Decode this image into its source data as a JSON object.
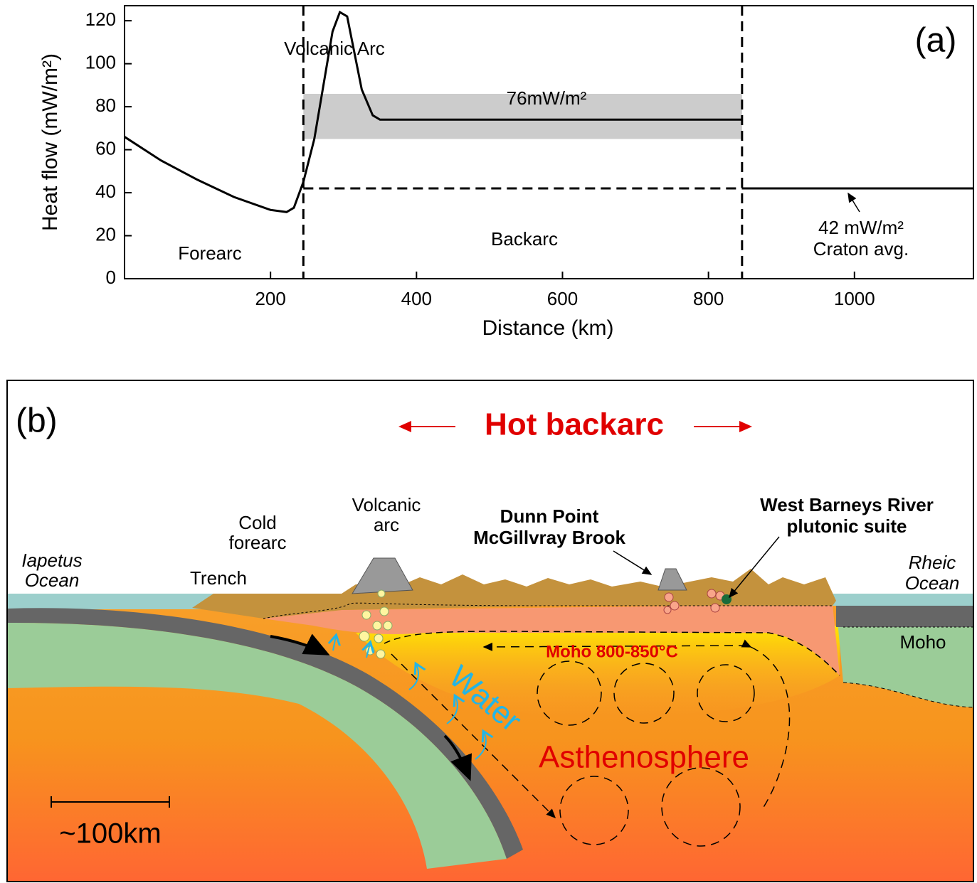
{
  "chart_data": {
    "type": "line",
    "xlabel": "Distance (km)",
    "ylabel": "Heat flow (mW/m²)",
    "xlim": [
      0,
      1163
    ],
    "ylim": [
      0,
      127
    ],
    "xticks": [
      200,
      400,
      600,
      800,
      1000
    ],
    "yticks": [
      0,
      20,
      40,
      60,
      80,
      100,
      120
    ],
    "series": [
      {
        "color": "#000000",
        "dash": false,
        "x": [
          0,
          50,
          100,
          150,
          200,
          222,
          232,
          245,
          260,
          275,
          285,
          295,
          305,
          315,
          325,
          340,
          350,
          846
        ],
        "values": [
          66,
          55,
          46,
          38,
          32,
          31,
          33,
          45,
          65,
          95,
          115,
          124,
          122,
          105,
          88,
          76,
          74,
          74
        ]
      },
      {
        "color": "#000000",
        "dash": true,
        "x": [
          245,
          846
        ],
        "values": [
          42,
          42
        ]
      },
      {
        "color": "#000000",
        "dash": false,
        "x": [
          846,
          1163
        ],
        "values": [
          42,
          42
        ]
      }
    ],
    "band": {
      "color": "#cccccc",
      "x": [
        245,
        846
      ],
      "y": [
        65,
        86
      ]
    },
    "vlines": [
      245,
      846
    ],
    "annotations": [
      "(a)",
      "Volcanic Arc",
      "76mW/m²",
      "Forearc",
      "Backarc",
      "42 mW/m²",
      "Craton avg."
    ]
  },
  "diagram": {
    "label": "(b)",
    "title": "Hot backarc",
    "labels": {
      "iapetus": [
        "Iapetus",
        "Ocean"
      ],
      "trench": "Trench",
      "forearc": [
        "Cold",
        "forearc"
      ],
      "arc": [
        "Volcanic",
        "arc"
      ],
      "dunn": [
        "Dunn Point",
        "McGillvray Brook"
      ],
      "barneys": [
        "West Barneys River",
        "plutonic suite"
      ],
      "rheic": [
        "Rheic",
        "Ocean"
      ],
      "moho": "Moho",
      "moho_temp": "Moho 800-850°C",
      "water": "Water",
      "asthenosphere": "Asthenosphere",
      "scale": "~100km"
    }
  }
}
